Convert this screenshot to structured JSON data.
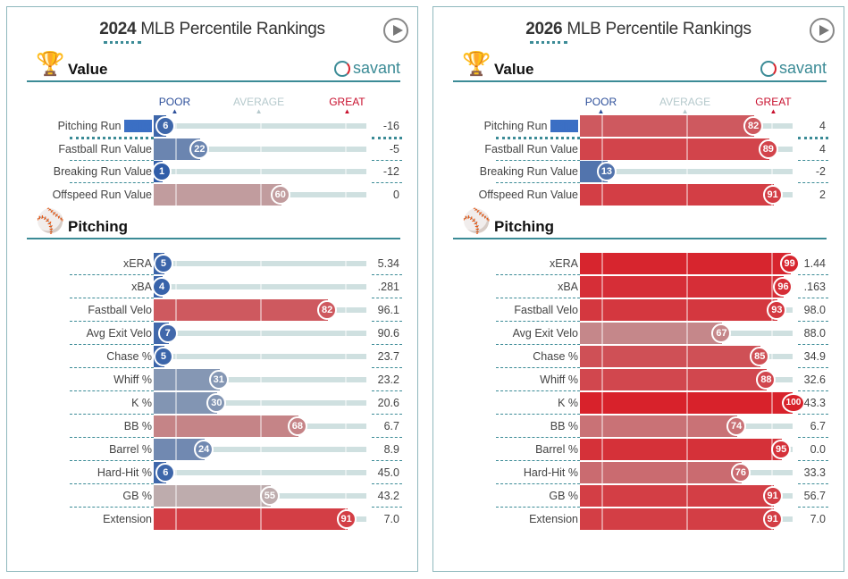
{
  "panels": [
    {
      "year": "2024",
      "title_rest": "MLB Percentile Rankings",
      "value_section": "Value",
      "pitching_section": "Pitching",
      "savant": "savant",
      "scale": {
        "poor": "POOR",
        "average": "AVERAGE",
        "great": "GREAT"
      },
      "value_rows": [
        {
          "label": "Pitching Run ",
          "label_hl": "Value",
          "pct": 6,
          "value": "-16"
        },
        {
          "label": "Fastball Run Value",
          "pct": 22,
          "value": "-5"
        },
        {
          "label": "Breaking Run Value",
          "pct": 1,
          "value": "-12"
        },
        {
          "label": "Offspeed Run Value",
          "pct": 60,
          "value": "0"
        }
      ],
      "pitching_rows": [
        {
          "label": "xERA",
          "pct": 5,
          "value": "5.34"
        },
        {
          "label": "xBA",
          "pct": 4,
          "value": ".281"
        },
        {
          "label": "Fastball Velo",
          "pct": 82,
          "value": "96.1"
        },
        {
          "label": "Avg Exit Velo",
          "pct": 7,
          "value": "90.6"
        },
        {
          "label": "Chase %",
          "pct": 5,
          "value": "23.7"
        },
        {
          "label": "Whiff %",
          "pct": 31,
          "value": "23.2"
        },
        {
          "label": "K %",
          "pct": 30,
          "value": "20.6"
        },
        {
          "label": "BB %",
          "pct": 68,
          "value": "6.7"
        },
        {
          "label": "Barrel %",
          "pct": 24,
          "value": "8.9"
        },
        {
          "label": "Hard-Hit %",
          "pct": 6,
          "value": "45.0"
        },
        {
          "label": "GB %",
          "pct": 55,
          "value": "43.2"
        },
        {
          "label": "Extension",
          "pct": 91,
          "value": "7.0"
        }
      ]
    },
    {
      "year": "2026",
      "title_rest": "MLB Percentile Rankings",
      "value_section": "Value",
      "pitching_section": "Pitching",
      "savant": "savant",
      "scale": {
        "poor": "POOR",
        "average": "AVERAGE",
        "great": "GREAT"
      },
      "value_rows": [
        {
          "label": "Pitching Run ",
          "label_hl": "Value",
          "pct": 82,
          "value": "4"
        },
        {
          "label": "Fastball Run Value",
          "pct": 89,
          "value": "4"
        },
        {
          "label": "Breaking Run Value",
          "pct": 13,
          "value": "-2"
        },
        {
          "label": "Offspeed Run Value",
          "pct": 91,
          "value": "2"
        }
      ],
      "pitching_rows": [
        {
          "label": "xERA",
          "pct": 99,
          "value": "1.44"
        },
        {
          "label": "xBA",
          "pct": 96,
          "value": ".163"
        },
        {
          "label": "Fastball Velo",
          "pct": 93,
          "value": "98.0"
        },
        {
          "label": "Avg Exit Velo",
          "pct": 67,
          "value": "88.0"
        },
        {
          "label": "Chase %",
          "pct": 85,
          "value": "34.9"
        },
        {
          "label": "Whiff %",
          "pct": 88,
          "value": "32.6"
        },
        {
          "label": "K %",
          "pct": 100,
          "value": "43.3"
        },
        {
          "label": "BB %",
          "pct": 74,
          "value": "6.7"
        },
        {
          "label": "Barrel %",
          "pct": 95,
          "value": "0.0"
        },
        {
          "label": "Hard-Hit %",
          "pct": 76,
          "value": "33.3"
        },
        {
          "label": "GB %",
          "pct": 91,
          "value": "56.7"
        },
        {
          "label": "Extension",
          "pct": 91,
          "value": "7.0"
        }
      ]
    }
  ],
  "colors": {
    "poor": "#2d5ba8",
    "average": "#bbbbbb",
    "great": "#d8222b",
    "poor_label": "#2d4f9a",
    "average_label": "#b5c9cc",
    "great_label": "#c8102e",
    "accent": "#3b8b96"
  }
}
